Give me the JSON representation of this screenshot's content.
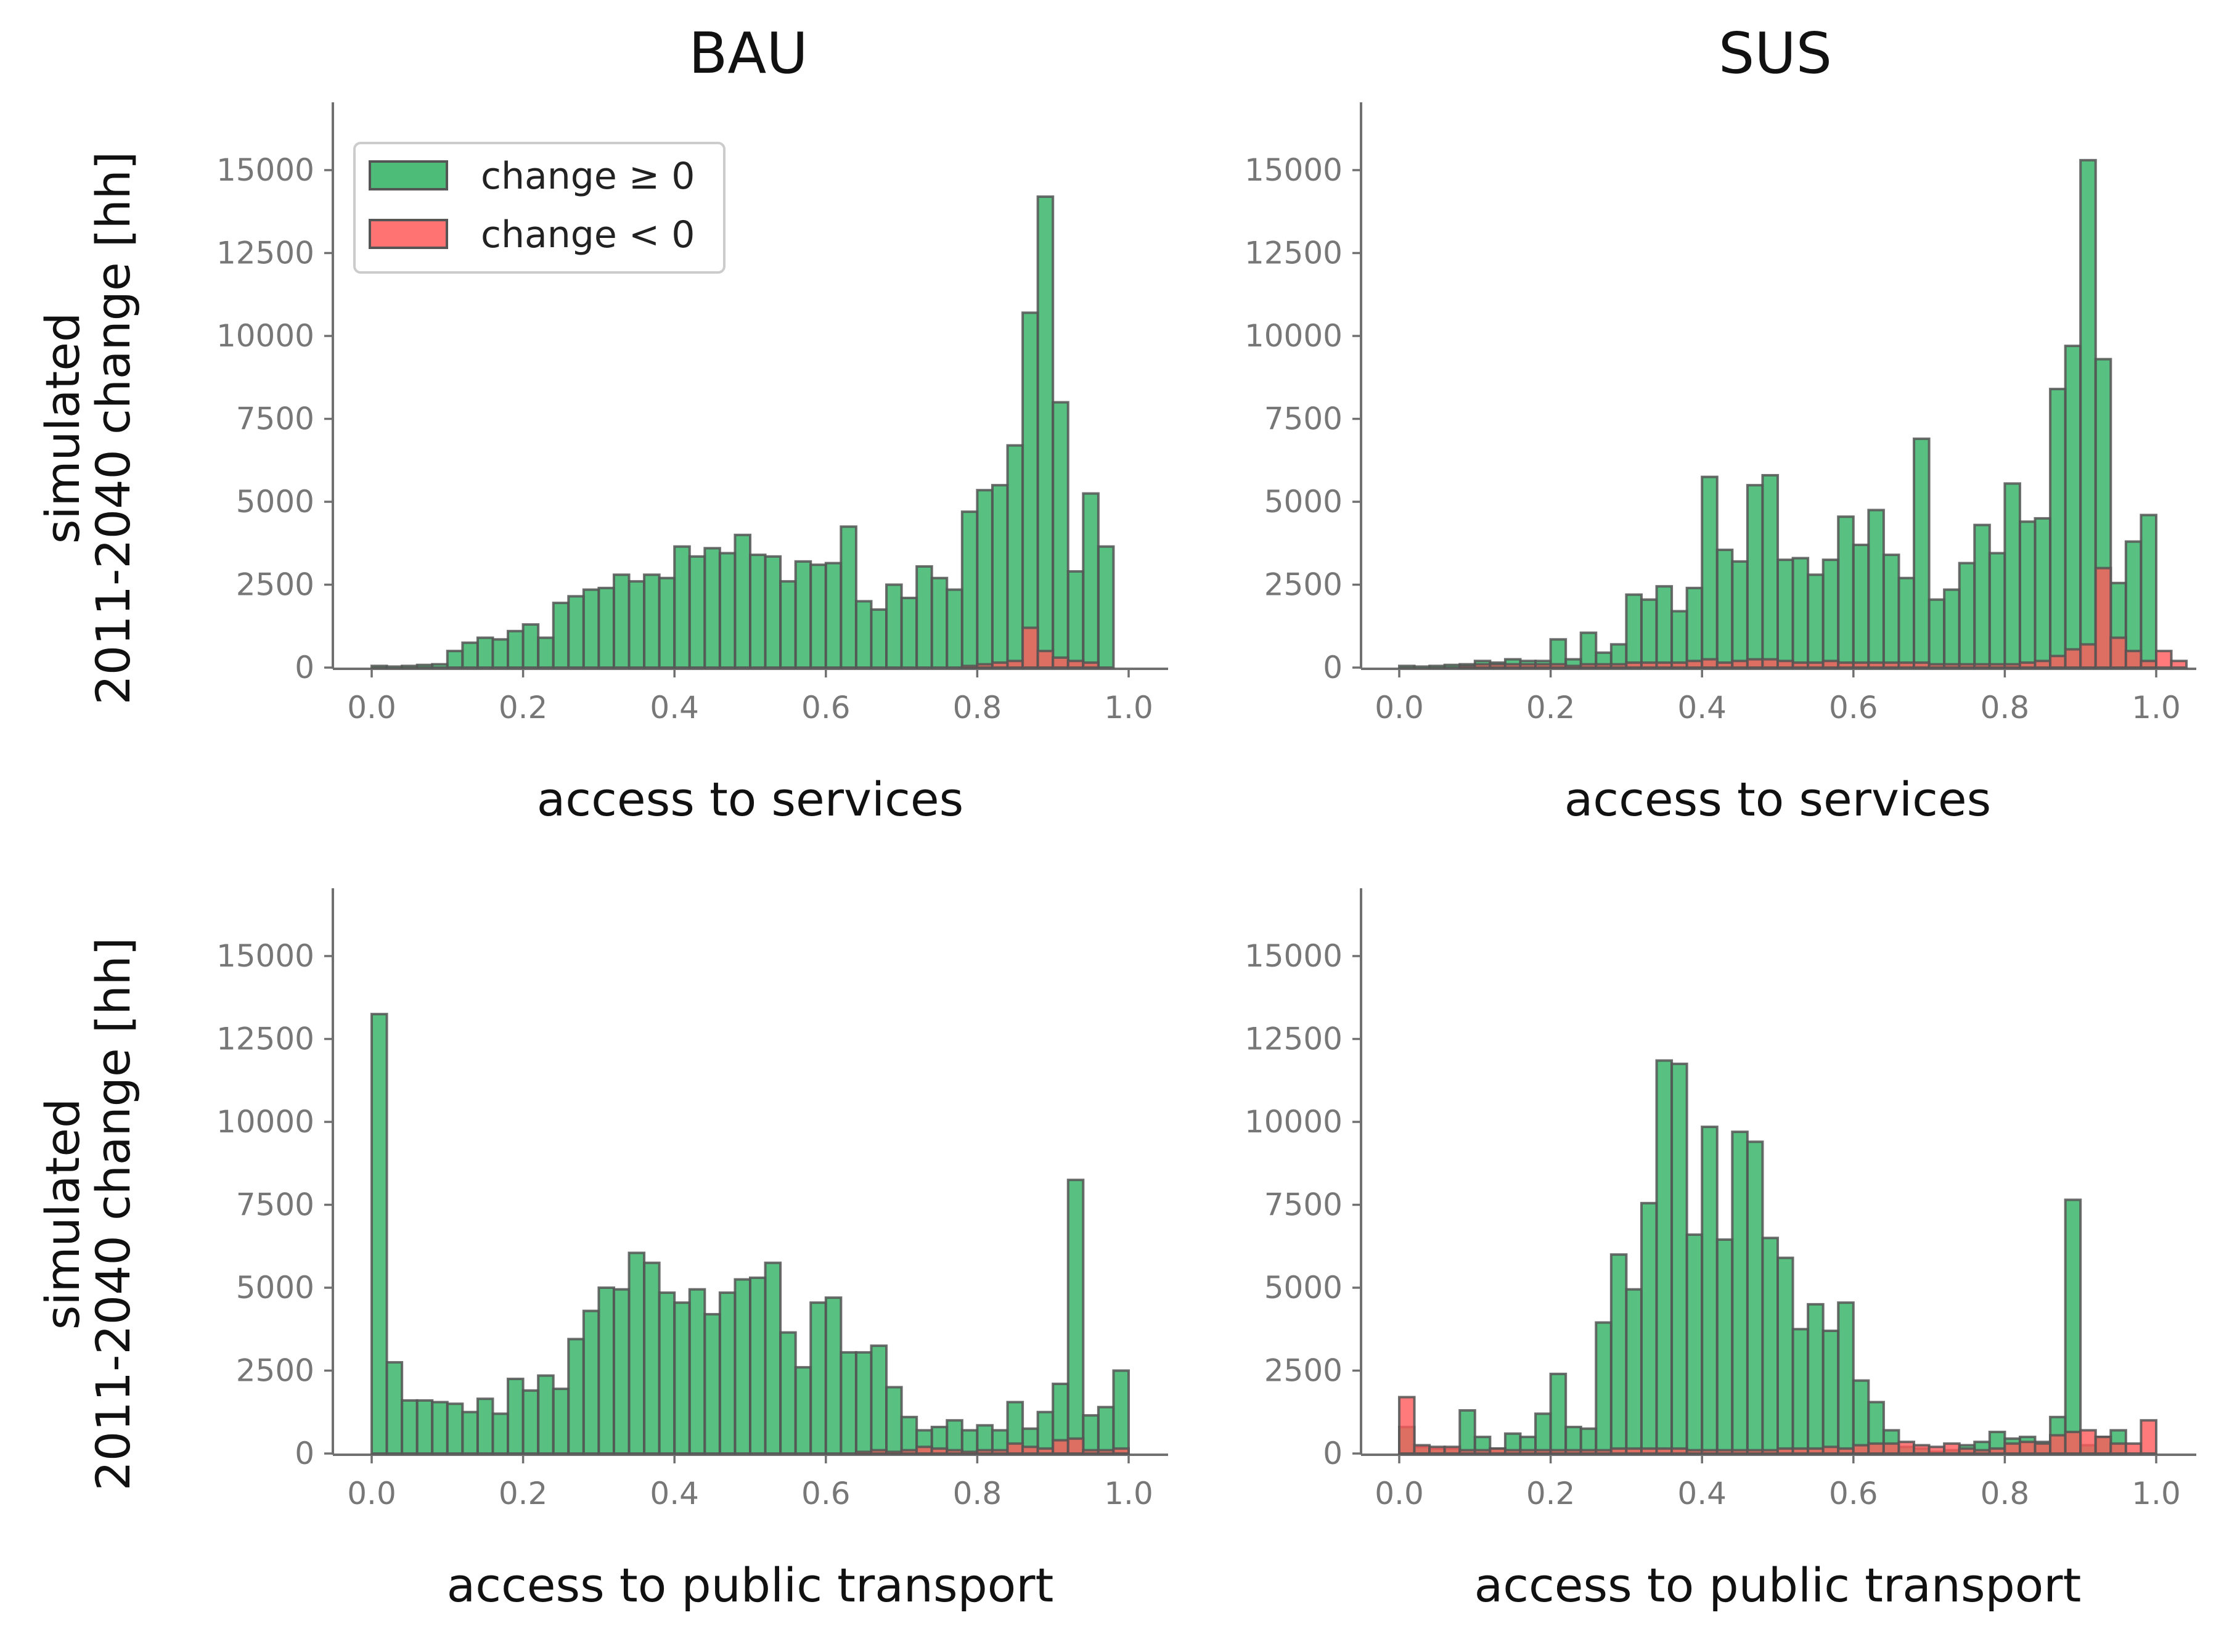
{
  "colors": {
    "positive": "#2eb060",
    "negative": "#ff5a5a",
    "edge": "#555555"
  },
  "column_titles": [
    "BAU",
    "SUS"
  ],
  "legend": {
    "positive_label": "change $\\geq 0$",
    "negative_label": "change $< 0$",
    "positive_text": "change ≥ 0",
    "negative_text": "change < 0"
  },
  "chart_data": [
    {
      "type": "bar",
      "title": "BAU",
      "xlabel": "access to services",
      "ylabel_line1": "simulated",
      "ylabel_line2": "2011-2040 change [hh]",
      "xlim": [
        -0.05,
        1.05
      ],
      "ylim": [
        0,
        17000
      ],
      "xticks": [
        0.0,
        0.2,
        0.4,
        0.6,
        0.8,
        1.0
      ],
      "xtick_labels": [
        "0.0",
        "0.2",
        "0.4",
        "0.6",
        "0.8",
        "1.0"
      ],
      "yticks": [
        0,
        2500,
        5000,
        7500,
        10000,
        12500,
        15000
      ],
      "ytick_labels": [
        "0",
        "2500",
        "5000",
        "7500",
        "10000",
        "12500",
        "15000"
      ],
      "bin_width": 0.02,
      "bin_start": 0.0,
      "legend": "upper-left",
      "series": [
        {
          "name": "change ≥ 0",
          "values": [
            50,
            30,
            50,
            80,
            100,
            500,
            750,
            900,
            850,
            1100,
            1300,
            900,
            1950,
            2150,
            2350,
            2400,
            2800,
            2600,
            2800,
            2700,
            3650,
            3350,
            3600,
            3450,
            4000,
            3400,
            3350,
            2600,
            3200,
            3100,
            3150,
            4250,
            2000,
            1750,
            2500,
            2100,
            3050,
            2700,
            2350,
            4700,
            5350,
            5500,
            6700,
            10700,
            14200,
            8000,
            2900,
            5250,
            3650
          ]
        },
        {
          "name": "change < 0",
          "values": [
            0,
            0,
            0,
            0,
            0,
            0,
            0,
            0,
            0,
            0,
            0,
            0,
            0,
            0,
            0,
            0,
            0,
            0,
            0,
            0,
            0,
            0,
            0,
            0,
            0,
            0,
            0,
            0,
            0,
            0,
            0,
            0,
            0,
            0,
            0,
            0,
            0,
            0,
            0,
            50,
            100,
            150,
            200,
            1200,
            500,
            300,
            200,
            150,
            0
          ]
        }
      ]
    },
    {
      "type": "bar",
      "title": "SUS",
      "xlabel": "access to services",
      "xlim": [
        -0.05,
        1.05
      ],
      "ylim": [
        0,
        17000
      ],
      "xticks": [
        0.0,
        0.2,
        0.4,
        0.6,
        0.8,
        1.0
      ],
      "xtick_labels": [
        "0.0",
        "0.2",
        "0.4",
        "0.6",
        "0.8",
        "1.0"
      ],
      "yticks": [
        0,
        2500,
        5000,
        7500,
        10000,
        12500,
        15000
      ],
      "ytick_labels": [
        "0",
        "2500",
        "5000",
        "7500",
        "10000",
        "12500",
        "15000"
      ],
      "bin_width": 0.02,
      "bin_start": 0.0,
      "series": [
        {
          "name": "change ≥ 0",
          "values": [
            50,
            30,
            50,
            80,
            100,
            200,
            150,
            250,
            200,
            200,
            850,
            250,
            1050,
            450,
            700,
            2200,
            2050,
            2450,
            1700,
            2400,
            5750,
            3550,
            3200,
            5500,
            5800,
            3250,
            3300,
            2800,
            3250,
            4550,
            3700,
            4750,
            3400,
            2700,
            6900,
            2050,
            2350,
            3150,
            4300,
            3450,
            5550,
            4400,
            4500,
            8400,
            9700,
            15300,
            9300,
            2550,
            3800,
            4600
          ]
        },
        {
          "name": "change < 0",
          "values": [
            0,
            0,
            0,
            0,
            50,
            100,
            100,
            100,
            100,
            100,
            100,
            50,
            100,
            100,
            100,
            150,
            150,
            150,
            150,
            200,
            250,
            150,
            200,
            250,
            250,
            200,
            150,
            150,
            200,
            150,
            150,
            150,
            150,
            150,
            150,
            100,
            100,
            100,
            100,
            100,
            100,
            150,
            200,
            350,
            550,
            700,
            3000,
            900,
            500,
            200,
            500,
            200
          ]
        }
      ]
    },
    {
      "type": "bar",
      "title": "",
      "xlabel": "access to public transport",
      "ylabel_line1": "simulated",
      "ylabel_line2": "2011-2040 change [hh]",
      "xlim": [
        -0.05,
        1.05
      ],
      "ylim": [
        0,
        17000
      ],
      "xticks": [
        0.0,
        0.2,
        0.4,
        0.6,
        0.8,
        1.0
      ],
      "xtick_labels": [
        "0.0",
        "0.2",
        "0.4",
        "0.6",
        "0.8",
        "1.0"
      ],
      "yticks": [
        0,
        2500,
        5000,
        7500,
        10000,
        12500,
        15000
      ],
      "ytick_labels": [
        "0",
        "2500",
        "5000",
        "7500",
        "10000",
        "12500",
        "15000"
      ],
      "bin_width": 0.02,
      "bin_start": 0.0,
      "series": [
        {
          "name": "change ≥ 0",
          "values": [
            13250,
            2750,
            1600,
            1600,
            1550,
            1500,
            1250,
            1650,
            1200,
            2250,
            1900,
            2350,
            1950,
            3450,
            4300,
            5000,
            4950,
            6050,
            5750,
            4850,
            4550,
            4950,
            4200,
            4850,
            5250,
            5300,
            5750,
            3650,
            2600,
            4550,
            4700,
            3050,
            3050,
            3250,
            2000,
            1100,
            700,
            800,
            1000,
            700,
            850,
            700,
            1550,
            750,
            1250,
            2100,
            8250,
            1150,
            1400,
            2500
          ]
        },
        {
          "name": "change < 0",
          "values": [
            0,
            0,
            0,
            0,
            0,
            0,
            0,
            0,
            0,
            0,
            0,
            0,
            0,
            0,
            0,
            0,
            0,
            0,
            0,
            0,
            0,
            0,
            0,
            0,
            0,
            0,
            0,
            0,
            0,
            0,
            0,
            0,
            50,
            100,
            50,
            100,
            200,
            150,
            100,
            50,
            100,
            100,
            300,
            200,
            150,
            400,
            450,
            100,
            100,
            150
          ]
        }
      ]
    },
    {
      "type": "bar",
      "title": "",
      "xlabel": "access to public transport",
      "xlim": [
        -0.05,
        1.05
      ],
      "ylim": [
        0,
        17000
      ],
      "xticks": [
        0.0,
        0.2,
        0.4,
        0.6,
        0.8,
        1.0
      ],
      "xtick_labels": [
        "0.0",
        "0.2",
        "0.4",
        "0.6",
        "0.8",
        "1.0"
      ],
      "yticks": [
        0,
        2500,
        5000,
        7500,
        10000,
        12500,
        15000
      ],
      "ytick_labels": [
        "0",
        "2500",
        "5000",
        "7500",
        "10000",
        "12500",
        "15000"
      ],
      "bin_width": 0.02,
      "bin_start": 0.0,
      "series": [
        {
          "name": "change ≥ 0",
          "values": [
            800,
            200,
            150,
            150,
            1300,
            500,
            150,
            600,
            500,
            1200,
            2400,
            800,
            750,
            3950,
            6000,
            4950,
            7550,
            11850,
            11750,
            6600,
            9850,
            6450,
            9700,
            9400,
            6500,
            5900,
            3750,
            4500,
            3700,
            4550,
            2200,
            1550,
            700,
            200,
            150,
            50,
            100,
            250,
            350,
            650,
            450,
            500,
            350,
            1100,
            7650,
            250,
            500,
            700
          ]
        },
        {
          "name": "change < 0",
          "values": [
            1700,
            250,
            200,
            200,
            100,
            100,
            150,
            100,
            100,
            100,
            100,
            100,
            100,
            100,
            150,
            150,
            150,
            150,
            150,
            100,
            100,
            100,
            100,
            100,
            100,
            150,
            150,
            150,
            200,
            150,
            250,
            300,
            300,
            350,
            250,
            200,
            300,
            150,
            100,
            150,
            300,
            350,
            300,
            550,
            650,
            700,
            500,
            300,
            300,
            1000
          ]
        }
      ]
    }
  ]
}
